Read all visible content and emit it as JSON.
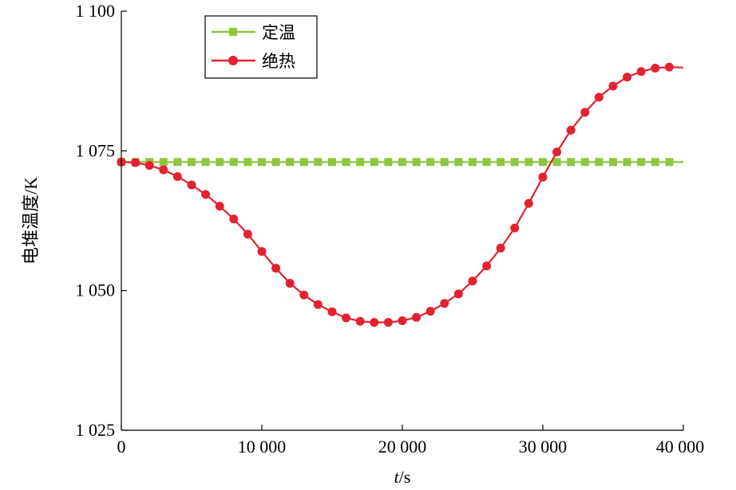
{
  "chart_data": {
    "type": "line",
    "xlabel_italic": "t",
    "xlabel_unit": "/s",
    "ylabel": "电堆温度/K",
    "xlim": [
      0,
      40000
    ],
    "ylim": [
      1025,
      1100
    ],
    "x_ticks": [
      0,
      10000,
      20000,
      30000,
      40000
    ],
    "x_tick_labels": [
      "0",
      "10 000",
      "20 000",
      "30 000",
      "40 000"
    ],
    "y_ticks": [
      1025,
      1050,
      1075,
      1100
    ],
    "y_tick_labels": [
      "1 025",
      "1 050",
      "1 075",
      "1 100"
    ],
    "grid": false,
    "legend_position": "top-left",
    "series": [
      {
        "name": "定温",
        "color": "#8dc63f",
        "marker": "square",
        "x": [
          0,
          1000,
          2000,
          3000,
          4000,
          5000,
          6000,
          7000,
          8000,
          9000,
          10000,
          11000,
          12000,
          13000,
          14000,
          15000,
          16000,
          17000,
          18000,
          19000,
          20000,
          21000,
          22000,
          23000,
          24000,
          25000,
          26000,
          27000,
          28000,
          29000,
          30000,
          31000,
          32000,
          33000,
          34000,
          35000,
          36000,
          37000,
          38000,
          39000,
          40000
        ],
        "y": [
          1073,
          1073,
          1073,
          1073,
          1073,
          1073,
          1073,
          1073,
          1073,
          1073,
          1073,
          1073,
          1073,
          1073,
          1073,
          1073,
          1073,
          1073,
          1073,
          1073,
          1073,
          1073,
          1073,
          1073,
          1073,
          1073,
          1073,
          1073,
          1073,
          1073,
          1073,
          1073,
          1073,
          1073,
          1073,
          1073,
          1073,
          1073,
          1073,
          1073,
          1073
        ],
        "marker_count": 40
      },
      {
        "name": "绝热",
        "color": "#e3212f",
        "marker": "circle",
        "x": [
          0,
          1000,
          2000,
          3000,
          4000,
          5000,
          6000,
          7000,
          8000,
          9000,
          10000,
          11000,
          12000,
          13000,
          14000,
          15000,
          16000,
          17000,
          18000,
          19000,
          20000,
          21000,
          22000,
          23000,
          24000,
          25000,
          26000,
          27000,
          28000,
          29000,
          30000,
          31000,
          32000,
          33000,
          34000,
          35000,
          36000,
          37000,
          38000,
          39000,
          40000
        ],
        "y": [
          1073.0,
          1072.9,
          1072.4,
          1071.6,
          1070.4,
          1068.9,
          1067.2,
          1065.1,
          1062.8,
          1060.1,
          1057.0,
          1054.0,
          1051.3,
          1049.2,
          1047.5,
          1046.2,
          1045.1,
          1044.5,
          1044.3,
          1044.3,
          1044.6,
          1045.2,
          1046.3,
          1047.7,
          1049.4,
          1051.7,
          1054.4,
          1057.6,
          1061.2,
          1065.6,
          1070.3,
          1074.8,
          1078.7,
          1081.9,
          1084.6,
          1086.6,
          1088.2,
          1089.2,
          1089.8,
          1090.0,
          1089.9
        ],
        "marker_count": 40
      }
    ]
  }
}
